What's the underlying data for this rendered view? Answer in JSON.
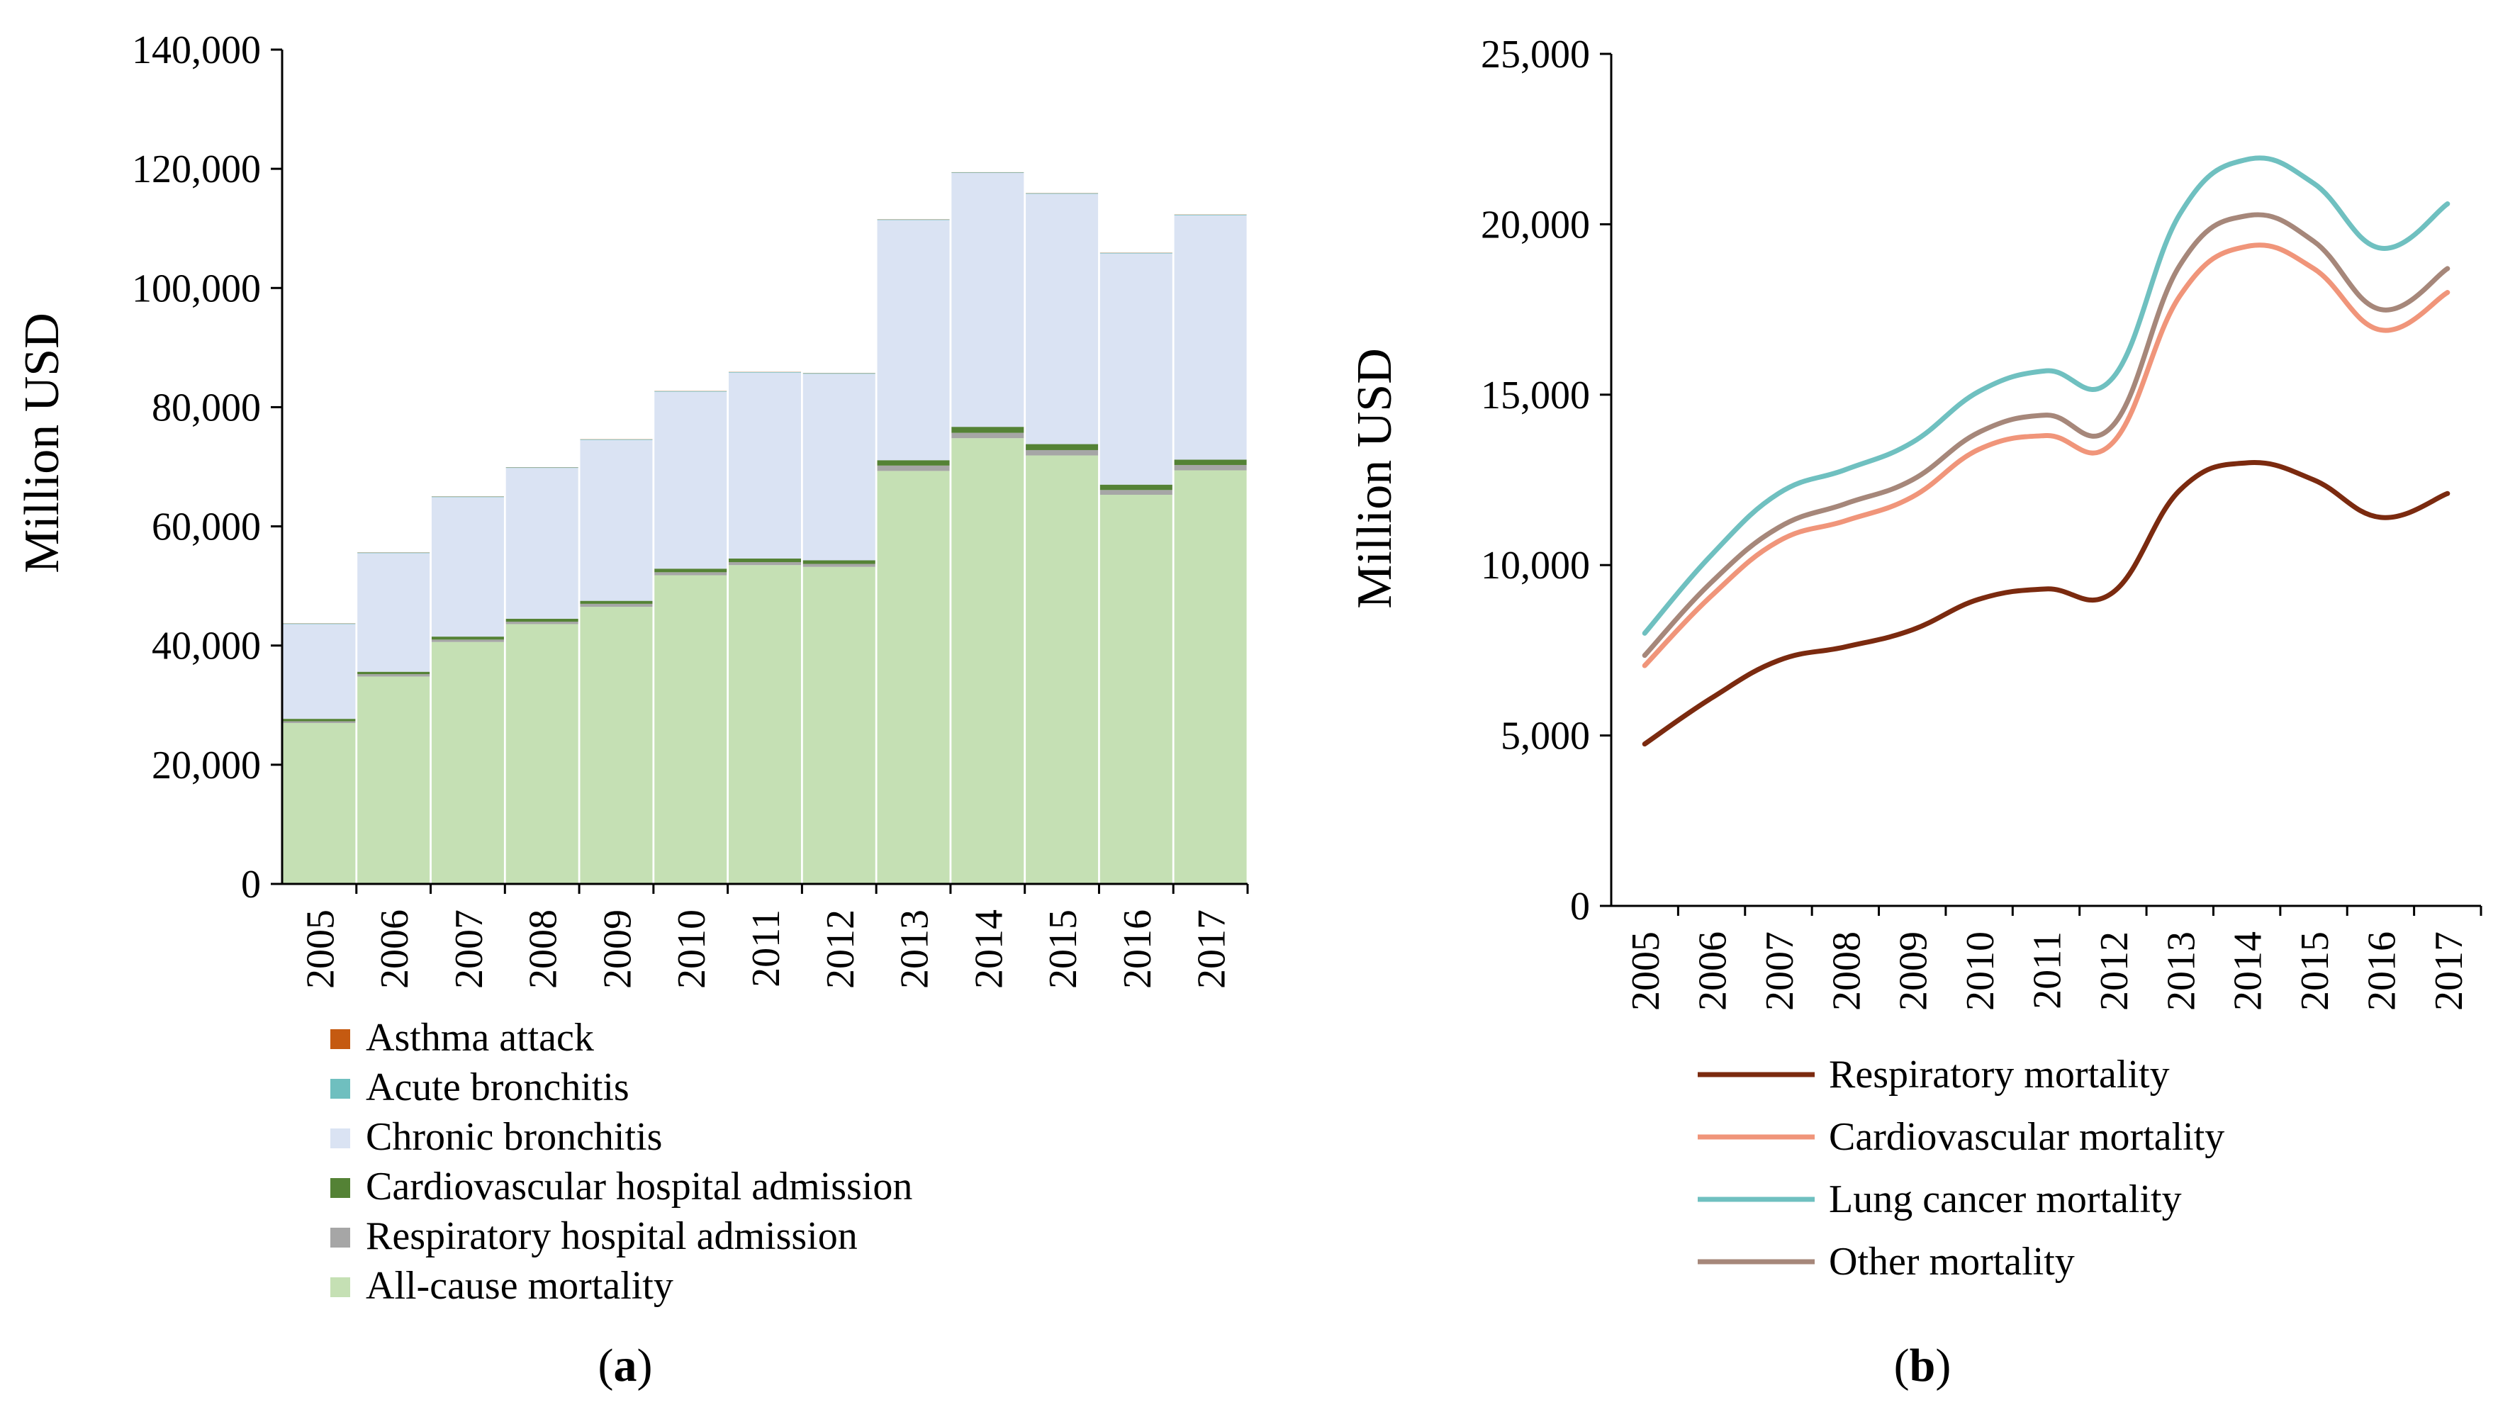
{
  "chart_data": [
    {
      "type": "bar",
      "stacked": true,
      "panel_label": {
        "open": "(",
        "letter": "a",
        "close": ")"
      },
      "ylabel": "Million USD",
      "xlabel": "",
      "ylim": [
        0,
        140000
      ],
      "yticks": [
        0,
        20000,
        40000,
        60000,
        80000,
        100000,
        120000,
        140000
      ],
      "ytick_labels": [
        "0",
        "20,000",
        "40,000",
        "60,000",
        "80,000",
        "100,000",
        "120,000",
        "140,000"
      ],
      "categories": [
        "2005",
        "2006",
        "2007",
        "2008",
        "2009",
        "2010",
        "2011",
        "2012",
        "2013",
        "2014",
        "2015",
        "2016",
        "2017"
      ],
      "series": [
        {
          "name": "All-cause mortality",
          "color": "#c5e0b4",
          "values": [
            27000,
            34800,
            40600,
            43600,
            46500,
            51800,
            53500,
            53200,
            69300,
            74800,
            71900,
            65300,
            69400
          ]
        },
        {
          "name": "Respiratory hospital admission",
          "color": "#a6a6a6",
          "values": [
            300,
            400,
            400,
            400,
            500,
            500,
            500,
            500,
            900,
            900,
            900,
            800,
            900
          ]
        },
        {
          "name": "Cardiovascular hospital admission",
          "color": "#548235",
          "values": [
            400,
            400,
            500,
            500,
            500,
            600,
            600,
            600,
            900,
            1000,
            1000,
            900,
            900
          ]
        },
        {
          "name": "Chronic bronchitis",
          "color": "#dae3f3",
          "values": [
            15900,
            19900,
            23400,
            25300,
            27000,
            29700,
            31200,
            31300,
            40300,
            42600,
            42000,
            38800,
            41000
          ]
        },
        {
          "name": "Acute bronchitis",
          "color": "#6fbfbf",
          "values": [
            100,
            100,
            100,
            100,
            100,
            100,
            100,
            100,
            100,
            100,
            100,
            100,
            100
          ]
        },
        {
          "name": "Asthma attack",
          "color": "#c55a11",
          "values": [
            30,
            30,
            30,
            30,
            30,
            30,
            30,
            30,
            30,
            30,
            30,
            30,
            30
          ]
        }
      ],
      "legend": [
        "Asthma attack",
        "Acute bronchitis",
        "Chronic bronchitis",
        "Cardiovascular hospital admission",
        "Respiratory hospital admission",
        "All-cause mortality"
      ],
      "legend_placement": "bottom"
    },
    {
      "type": "line",
      "smooth": true,
      "panel_label": {
        "open": "(",
        "letter": "b",
        "close": ")"
      },
      "ylabel": "Million USD",
      "xlabel": "",
      "ylim": [
        0,
        25000
      ],
      "yticks": [
        0,
        5000,
        10000,
        15000,
        20000,
        25000
      ],
      "ytick_labels": [
        "0",
        "5,000",
        "10,000",
        "15,000",
        "20,000",
        "25,000"
      ],
      "categories": [
        "2005",
        "2006",
        "2007",
        "2008",
        "2009",
        "2010",
        "2011",
        "2012",
        "2013",
        "2014",
        "2015",
        "2016",
        "2017"
      ],
      "series": [
        {
          "name": "Respiratory mortality",
          "color": "#7b2a0f",
          "values": [
            4750,
            6100,
            7200,
            7600,
            8100,
            9000,
            9300,
            9200,
            12200,
            13000,
            12500,
            11400,
            12100
          ]
        },
        {
          "name": "Cardiovascular mortality",
          "color": "#f0957a",
          "values": [
            7050,
            9100,
            10700,
            11300,
            12000,
            13400,
            13800,
            13600,
            17900,
            19350,
            18700,
            16900,
            18000
          ]
        },
        {
          "name": "Lung cancer mortality",
          "color": "#6fc0c0",
          "values": [
            8000,
            10300,
            12100,
            12800,
            13600,
            15100,
            15700,
            15500,
            20300,
            21900,
            21200,
            19300,
            20600
          ]
        },
        {
          "name": "Other mortality",
          "color": "#a6877a",
          "values": [
            7350,
            9500,
            11100,
            11800,
            12500,
            13900,
            14400,
            14100,
            18800,
            20250,
            19500,
            17500,
            18700
          ]
        }
      ],
      "legend": [
        "Respiratory mortality",
        "Cardiovascular mortality",
        "Lung cancer mortality",
        "Other mortality"
      ],
      "legend_placement": "bottom"
    }
  ]
}
